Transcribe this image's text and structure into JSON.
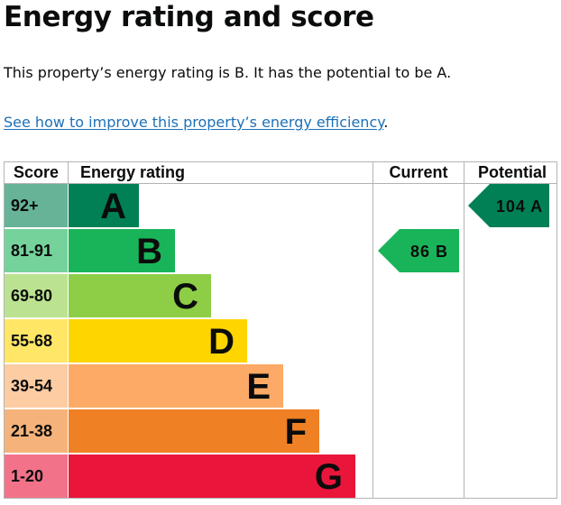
{
  "heading": "Energy rating and score",
  "summary": "This property’s energy rating is B. It has the potential to be A.",
  "improve_link": {
    "text": "See how to improve this property’s energy efficiency",
    "suffix": "."
  },
  "table": {
    "headers": {
      "score": "Score",
      "rating": "Energy rating",
      "current": "Current",
      "potential": "Potential"
    },
    "bands": [
      {
        "letter": "A",
        "score": "92+",
        "color": "#008054",
        "score_bg": "#66b398"
      },
      {
        "letter": "B",
        "score": "81-91",
        "color": "#19b459",
        "score_bg": "#75d29b"
      },
      {
        "letter": "C",
        "score": "69-80",
        "color": "#8dce46",
        "score_bg": "#bbe290"
      },
      {
        "letter": "D",
        "score": "55-68",
        "color": "#ffd500",
        "score_bg": "#ffe666"
      },
      {
        "letter": "E",
        "score": "39-54",
        "color": "#fcaa65",
        "score_bg": "#fdcca3"
      },
      {
        "letter": "F",
        "score": "21-38",
        "color": "#ef8023",
        "score_bg": "#f5b37b"
      },
      {
        "letter": "G",
        "score": "1-20",
        "color": "#e9153b",
        "score_bg": "#f27389"
      }
    ],
    "current": {
      "value": 86,
      "band": "B",
      "label": "86 B",
      "color": "#19b459"
    },
    "potential": {
      "value": 104,
      "band": "A",
      "label": "104 A",
      "color": "#008054"
    }
  }
}
